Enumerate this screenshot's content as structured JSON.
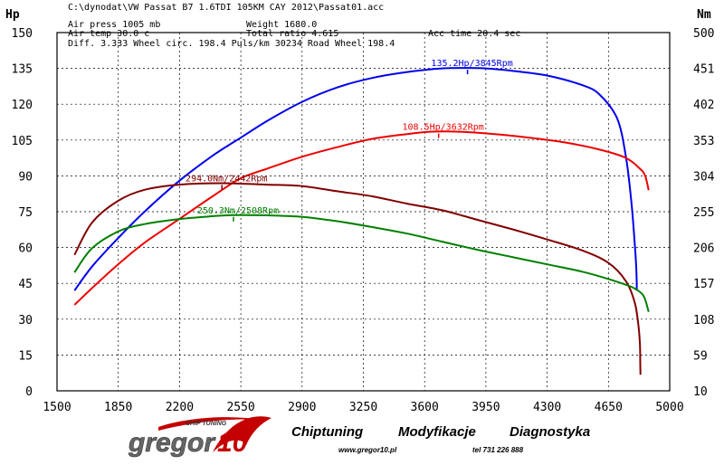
{
  "header": {
    "file_path": "C:\\dynodat\\VW Passat B7 1.6TDI 105KM CAY 2012\\Passat01.acc",
    "air_press": "Air press  1005 mb",
    "weight": "Weight   1680.0",
    "air_temp": "Air temp   30.0 c",
    "total_ratio": "Total ratio 4.615",
    "acc_time": "Acc time   20.4 sec",
    "diff_line": "Diff.     3.333   Wheel circ. 198.4   Puls/km    30234   Road Wheel 198.4"
  },
  "chart_data": {
    "type": "line",
    "xlabel": "",
    "x_ticks": [
      1500,
      1850,
      2200,
      2550,
      2900,
      3250,
      3600,
      3950,
      4300,
      4650,
      5000
    ],
    "xlim": [
      1500,
      5000
    ],
    "left_axis": {
      "unit": "Hp",
      "ticks": [
        0,
        15,
        30,
        45,
        60,
        75,
        90,
        105,
        120,
        135,
        150
      ],
      "ylim": [
        0,
        150
      ]
    },
    "right_axis": {
      "unit": "Nm",
      "ticks": [
        10,
        59,
        108,
        157,
        206,
        255,
        304,
        353,
        402,
        451,
        500
      ],
      "ylim": [
        10,
        500
      ]
    },
    "grid": true,
    "series": [
      {
        "id": "power-wheel",
        "axis": "left",
        "color": "#0000ee",
        "points": [
          [
            1600,
            42
          ],
          [
            1700,
            52
          ],
          [
            1850,
            64
          ],
          [
            2000,
            75
          ],
          [
            2200,
            88
          ],
          [
            2400,
            99
          ],
          [
            2550,
            106
          ],
          [
            2700,
            113
          ],
          [
            2900,
            121
          ],
          [
            3100,
            127
          ],
          [
            3300,
            131
          ],
          [
            3500,
            133.5
          ],
          [
            3700,
            135
          ],
          [
            3845,
            135.2
          ],
          [
            3950,
            135
          ],
          [
            4100,
            134
          ],
          [
            4300,
            132
          ],
          [
            4500,
            128
          ],
          [
            4600,
            124
          ],
          [
            4700,
            114
          ],
          [
            4750,
            98
          ],
          [
            4780,
            80
          ],
          [
            4800,
            62
          ],
          [
            4810,
            50
          ],
          [
            4812,
            42
          ]
        ]
      },
      {
        "id": "power-engine",
        "axis": "left",
        "color": "#ee0000",
        "points": [
          [
            1600,
            36
          ],
          [
            1700,
            43
          ],
          [
            1850,
            53
          ],
          [
            2000,
            62
          ],
          [
            2200,
            72
          ],
          [
            2400,
            82
          ],
          [
            2550,
            89
          ],
          [
            2700,
            93
          ],
          [
            2900,
            98
          ],
          [
            3100,
            102
          ],
          [
            3300,
            105.5
          ],
          [
            3500,
            107.5
          ],
          [
            3632,
            108.5
          ],
          [
            3800,
            108.5
          ],
          [
            4000,
            107.5
          ],
          [
            4200,
            106
          ],
          [
            4400,
            104
          ],
          [
            4600,
            101
          ],
          [
            4750,
            97.5
          ],
          [
            4830,
            93
          ],
          [
            4860,
            90
          ],
          [
            4880,
            84
          ]
        ]
      },
      {
        "id": "torque-engine",
        "axis": "right",
        "color": "#800000",
        "points": [
          [
            1600,
            196
          ],
          [
            1700,
            240
          ],
          [
            1850,
            270
          ],
          [
            2000,
            285
          ],
          [
            2200,
            292
          ],
          [
            2442,
            294
          ],
          [
            2700,
            292
          ],
          [
            2900,
            290
          ],
          [
            3100,
            283
          ],
          [
            3300,
            276
          ],
          [
            3500,
            266
          ],
          [
            3700,
            257
          ],
          [
            3900,
            244
          ],
          [
            4100,
            231
          ],
          [
            4300,
            217
          ],
          [
            4500,
            202
          ],
          [
            4650,
            185
          ],
          [
            4750,
            160
          ],
          [
            4800,
            131
          ],
          [
            4820,
            102
          ],
          [
            4830,
            74
          ],
          [
            4832,
            45
          ],
          [
            4833,
            32
          ]
        ]
      },
      {
        "id": "torque-wheel",
        "axis": "right",
        "color": "#008000",
        "points": [
          [
            1600,
            172
          ],
          [
            1700,
            205
          ],
          [
            1850,
            228
          ],
          [
            2000,
            238
          ],
          [
            2200,
            245
          ],
          [
            2400,
            249
          ],
          [
            2508,
            250.3
          ],
          [
            2700,
            250
          ],
          [
            2900,
            248
          ],
          [
            3100,
            242
          ],
          [
            3300,
            234
          ],
          [
            3500,
            225
          ],
          [
            3700,
            214
          ],
          [
            3900,
            203
          ],
          [
            4100,
            193
          ],
          [
            4300,
            183
          ],
          [
            4500,
            173
          ],
          [
            4650,
            163
          ],
          [
            4750,
            155
          ],
          [
            4800,
            150
          ],
          [
            4850,
            140
          ],
          [
            4880,
            118
          ]
        ]
      }
    ],
    "annotations": [
      {
        "series": "power-wheel",
        "text": "135.2Hp/3845Rpm",
        "marker_x": 3845
      },
      {
        "series": "power-engine",
        "text": "108.5Hp/3632Rpm",
        "marker_x": 3680
      },
      {
        "series": "torque-engine",
        "text": "294.0Nm/2442Rpm",
        "marker_x": 2442
      },
      {
        "series": "torque-wheel",
        "text": "250.3Nm/2508Rpm",
        "marker_x": 2508
      }
    ]
  },
  "footer": {
    "brand_tagline": "CHIP TUNING",
    "brand_name": "gregor",
    "brand_number": "10",
    "services": [
      "Chiptuning",
      "Modyfikacje",
      "Diagnostyka"
    ],
    "website": "www.gregor10.pl",
    "phone": "tel 731 226 888"
  }
}
